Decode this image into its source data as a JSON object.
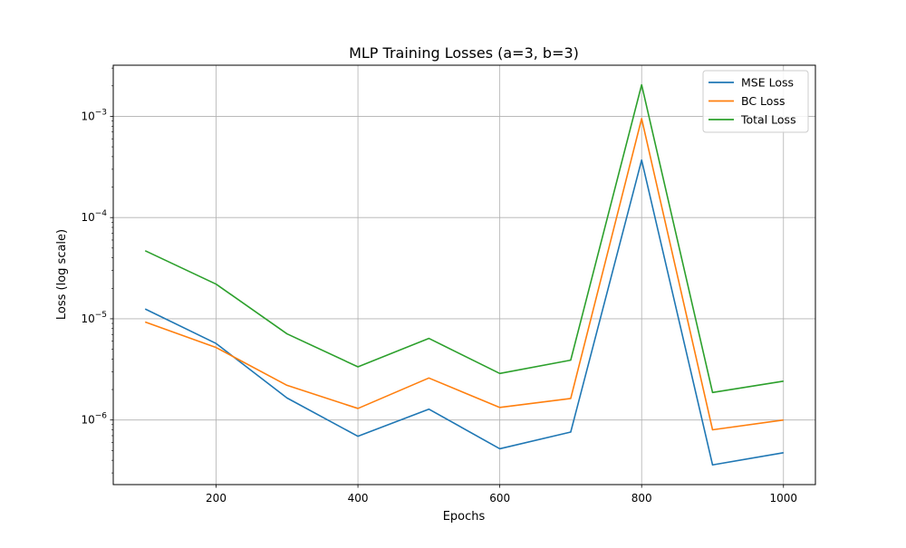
{
  "chart_data": {
    "type": "line",
    "title": "MLP Training Losses (a=3, b=3)",
    "xlabel": "Epochs",
    "ylabel": "Loss (log scale)",
    "yscale": "log",
    "xlim": [
      55,
      1045
    ],
    "ylim": [
      2.3e-07,
      0.0032
    ],
    "grid": true,
    "legend_position": "upper-right",
    "x_ticks": [
      200,
      400,
      600,
      800,
      1000
    ],
    "x_tick_labels": [
      "200",
      "400",
      "600",
      "800",
      "1000"
    ],
    "y_ticks": [
      1e-06,
      1e-05,
      0.0001,
      0.001
    ],
    "y_tick_labels": [
      {
        "base": "10",
        "exp": "−6"
      },
      {
        "base": "10",
        "exp": "−5"
      },
      {
        "base": "10",
        "exp": "−4"
      },
      {
        "base": "10",
        "exp": "−3"
      }
    ],
    "x": [
      100,
      200,
      300,
      400,
      500,
      600,
      700,
      800,
      900,
      1000
    ],
    "series": [
      {
        "name": "MSE Loss",
        "color": "#1f77b4",
        "values": [
          1.25e-05,
          5.7e-06,
          1.65e-06,
          6.9e-07,
          1.28e-06,
          5.2e-07,
          7.6e-07,
          0.00037,
          3.6e-07,
          4.75e-07
        ]
      },
      {
        "name": "BC Loss",
        "color": "#ff7f0e",
        "values": [
          9.3e-06,
          5.2e-06,
          2.2e-06,
          1.3e-06,
          2.6e-06,
          1.33e-06,
          1.63e-06,
          0.00095,
          8e-07,
          1e-06
        ]
      },
      {
        "name": "Total Loss",
        "color": "#2ca02c",
        "values": [
          4.7e-05,
          2.2e-05,
          7.1e-06,
          3.35e-06,
          6.4e-06,
          2.88e-06,
          3.9e-06,
          0.00205,
          1.87e-06,
          2.42e-06
        ]
      }
    ]
  }
}
